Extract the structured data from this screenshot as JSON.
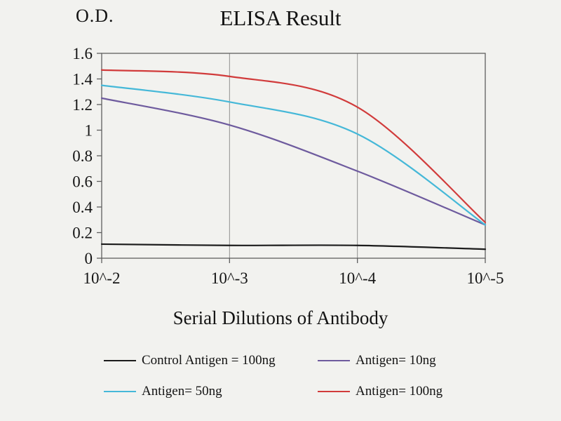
{
  "title": "ELISA Result",
  "y_axis_label": "O.D.",
  "x_axis_label": "Serial Dilutions of Antibody",
  "chart_data": {
    "type": "line",
    "categories": [
      "10^-2",
      "10^-3",
      "10^-4",
      "10^-5"
    ],
    "xlabel": "Serial Dilutions of Antibody",
    "ylabel": "O.D.",
    "ylim": [
      0,
      1.6
    ],
    "y_ticks": [
      0,
      0.2,
      0.4,
      0.6,
      0.8,
      1,
      1.2,
      1.4,
      1.6
    ],
    "y_tick_labels": [
      "0",
      "0.2",
      "0.4",
      "0.6",
      "0.8",
      "1",
      "1.2",
      "1.4",
      "1.6"
    ],
    "grid": "vertical-only",
    "legend_position": "bottom",
    "series": [
      {
        "name": "Control Antigen = 100ng",
        "color": "#1c1c1c",
        "values": [
          0.11,
          0.1,
          0.1,
          0.07
        ]
      },
      {
        "name": "Antigen= 10ng",
        "color": "#6e5b9e",
        "values": [
          1.25,
          1.04,
          0.68,
          0.26
        ]
      },
      {
        "name": "Antigen= 50ng",
        "color": "#45b8d8",
        "values": [
          1.35,
          1.22,
          0.97,
          0.26
        ]
      },
      {
        "name": "Antigen= 100ng",
        "color": "#d13b3b",
        "values": [
          1.47,
          1.42,
          1.18,
          0.28
        ]
      }
    ]
  }
}
